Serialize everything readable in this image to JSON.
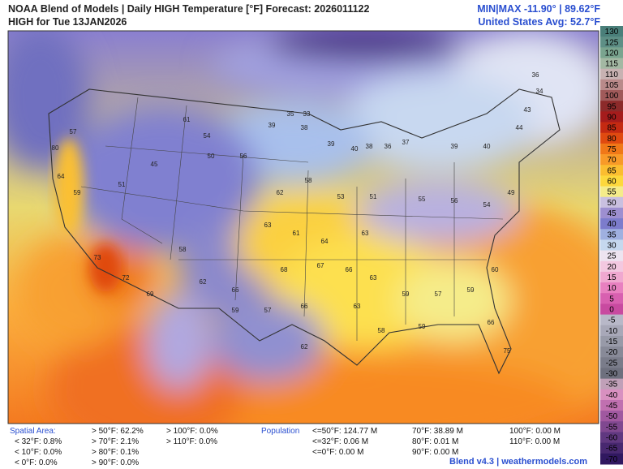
{
  "header": {
    "title": "NOAA Blend of Models | Daily HIGH Temperature [°F] Forecast: 2026011122",
    "subtitle": "HIGH for Tue 13JAN2026",
    "minmax": "MIN|MAX -11.90° | 89.62°F",
    "avg": "United States Avg: 52.7°F"
  },
  "stations": [
    35,
    33,
    39,
    38,
    39,
    40,
    38,
    36,
    37,
    39,
    40,
    44,
    43,
    34,
    36,
    57,
    80,
    64,
    59,
    51,
    45,
    61,
    54,
    50,
    56,
    62,
    58,
    53,
    51,
    55,
    56,
    54,
    49,
    73,
    72,
    69,
    58,
    66,
    68,
    67,
    66,
    63,
    59,
    57,
    59,
    60,
    66,
    75,
    59,
    57,
    66,
    62,
    63,
    58,
    59,
    63,
    61,
    64,
    63,
    62
  ],
  "colorbar": {
    "ticks": [
      130,
      125,
      120,
      115,
      110,
      105,
      100,
      95,
      90,
      85,
      80,
      75,
      70,
      65,
      60,
      55,
      50,
      45,
      40,
      35,
      30,
      25,
      20,
      15,
      10,
      5,
      0,
      -5,
      -10,
      -15,
      -20,
      -25,
      -30,
      -35,
      -40,
      -45,
      -50,
      -55,
      -60,
      -65,
      -70
    ],
    "colors": [
      "#4a7f7a",
      "#5e8f86",
      "#7aa48f",
      "#a3b8a3",
      "#c8b2b2",
      "#b98a8a",
      "#a05a5a",
      "#8c2a2a",
      "#a51c1c",
      "#c42a12",
      "#e04a10",
      "#f07818",
      "#f89a28",
      "#fbbd30",
      "#fdd83c",
      "#f5ec8a",
      "#c9c0e0",
      "#9d8fd0",
      "#7c7ccc",
      "#9fb0e0",
      "#c5d8ee",
      "#ede4f0",
      "#f3c8e0",
      "#f0a8d0",
      "#e880c0",
      "#d860b0",
      "#c84aa0",
      "#b8b8c8",
      "#a8a8b8",
      "#989aa8",
      "#888a98",
      "#7a7c8a",
      "#6e707e",
      "#c0a0b8",
      "#d890c0",
      "#c070b0",
      "#a058a0",
      "#804890",
      "#603880",
      "#482870",
      "#301860"
    ]
  },
  "footer": {
    "spatial_label": "Spatial Area:",
    "spatial": [
      "> 50°F: 62.2%",
      "> 70°F: 2.1%",
      "> 80°F: 0.1%",
      "> 90°F: 0.0%",
      "> 100°F: 0.0%",
      "> 110°F: 0.0%",
      "< 32°F: 0.8%",
      "< 10°F: 0.0%",
      "< 0°F: 0.0%"
    ],
    "population_label": "Population",
    "population": [
      "<=50°F: 124.77 M",
      "<=32°F: 0.06 M",
      "<=0°F: 0.00 M",
      "70°F: 38.89 M",
      "80°F: 0.01 M",
      "90°F: 0.00 M",
      "100°F: 0.00 M",
      "110°F: 0.00 M"
    ],
    "credit": "Blend v4.3 | weathermodels.com"
  }
}
